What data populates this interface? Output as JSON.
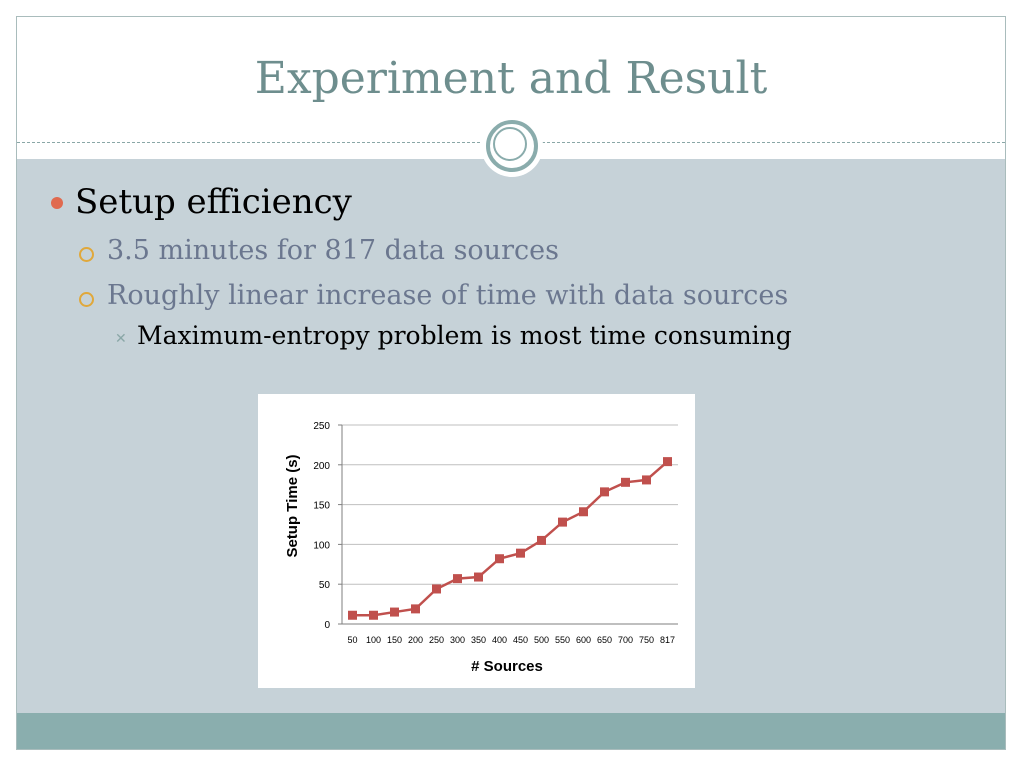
{
  "slide": {
    "title": "Experiment and Result",
    "bullets": [
      {
        "level": 1,
        "text": "Setup efficiency"
      },
      {
        "level": 2,
        "text": "3.5 minutes for 817 data sources"
      },
      {
        "level": 2,
        "text": "Roughly linear increase of time with data sources"
      },
      {
        "level": 3,
        "text": "Maximum-entropy problem is most time consuming"
      }
    ]
  },
  "colors": {
    "title": "#6e8e8e",
    "background": "#c6d2d8",
    "footer_band": "#8aaeae",
    "bullet_level1": "#e06a4f",
    "bullet_level2": "#e0a83b",
    "series_line": "#c0504d"
  },
  "chart_data": {
    "type": "line",
    "title": "",
    "xlabel": "# Sources",
    "ylabel": "Setup Time (s)",
    "categories": [
      "50",
      "100",
      "150",
      "200",
      "250",
      "300",
      "350",
      "400",
      "450",
      "500",
      "550",
      "600",
      "650",
      "700",
      "750",
      "817"
    ],
    "series": [
      {
        "values": [
          11,
          11,
          15,
          19,
          44,
          57,
          59,
          82,
          89,
          105,
          128,
          141,
          166,
          178,
          181,
          204
        ]
      }
    ],
    "ylim": [
      0,
      250
    ],
    "yticks": [
      0,
      50,
      100,
      150,
      200,
      250
    ],
    "grid": true,
    "legend": "none",
    "marker": "square"
  }
}
